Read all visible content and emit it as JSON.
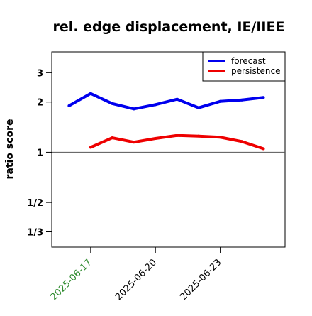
{
  "chart_data": {
    "type": "line",
    "title": "rel. edge displacement, IE/IIEE",
    "xlabel": "",
    "ylabel": "ratio score",
    "y_scale": "log",
    "ylim": [
      0.27,
      4.0
    ],
    "reference_line": 1,
    "yticks": [
      {
        "value": 3,
        "label": "3"
      },
      {
        "value": 2,
        "label": "2"
      },
      {
        "value": 1,
        "label": "1"
      },
      {
        "value": 0.5,
        "label": "1/2"
      },
      {
        "value": 0.3333,
        "label": "1/3"
      }
    ],
    "x_start": "2025-06-16",
    "xlim": [
      -0.8,
      10.0
    ],
    "xticks": [
      {
        "x": 1,
        "label": "2025-06-17",
        "color": "#2e8b2e"
      },
      {
        "x": 4,
        "label": "2025-06-20",
        "color": "#000000"
      },
      {
        "x": 7,
        "label": "2025-06-23",
        "color": "#000000"
      }
    ],
    "legend_position": "top-right",
    "series": [
      {
        "name": "forecast",
        "color": "#0000ee",
        "x": [
          0,
          1,
          2,
          3,
          4,
          5,
          6,
          7,
          8,
          9
        ],
        "values": [
          1.9,
          2.25,
          1.96,
          1.82,
          1.93,
          2.08,
          1.85,
          2.02,
          2.06,
          2.13
        ]
      },
      {
        "name": "persistence",
        "color": "#ee0000",
        "x": [
          1,
          2,
          3,
          4,
          5,
          6,
          7,
          8,
          9
        ],
        "values": [
          1.07,
          1.22,
          1.15,
          1.21,
          1.26,
          1.25,
          1.23,
          1.16,
          1.05
        ]
      }
    ]
  }
}
